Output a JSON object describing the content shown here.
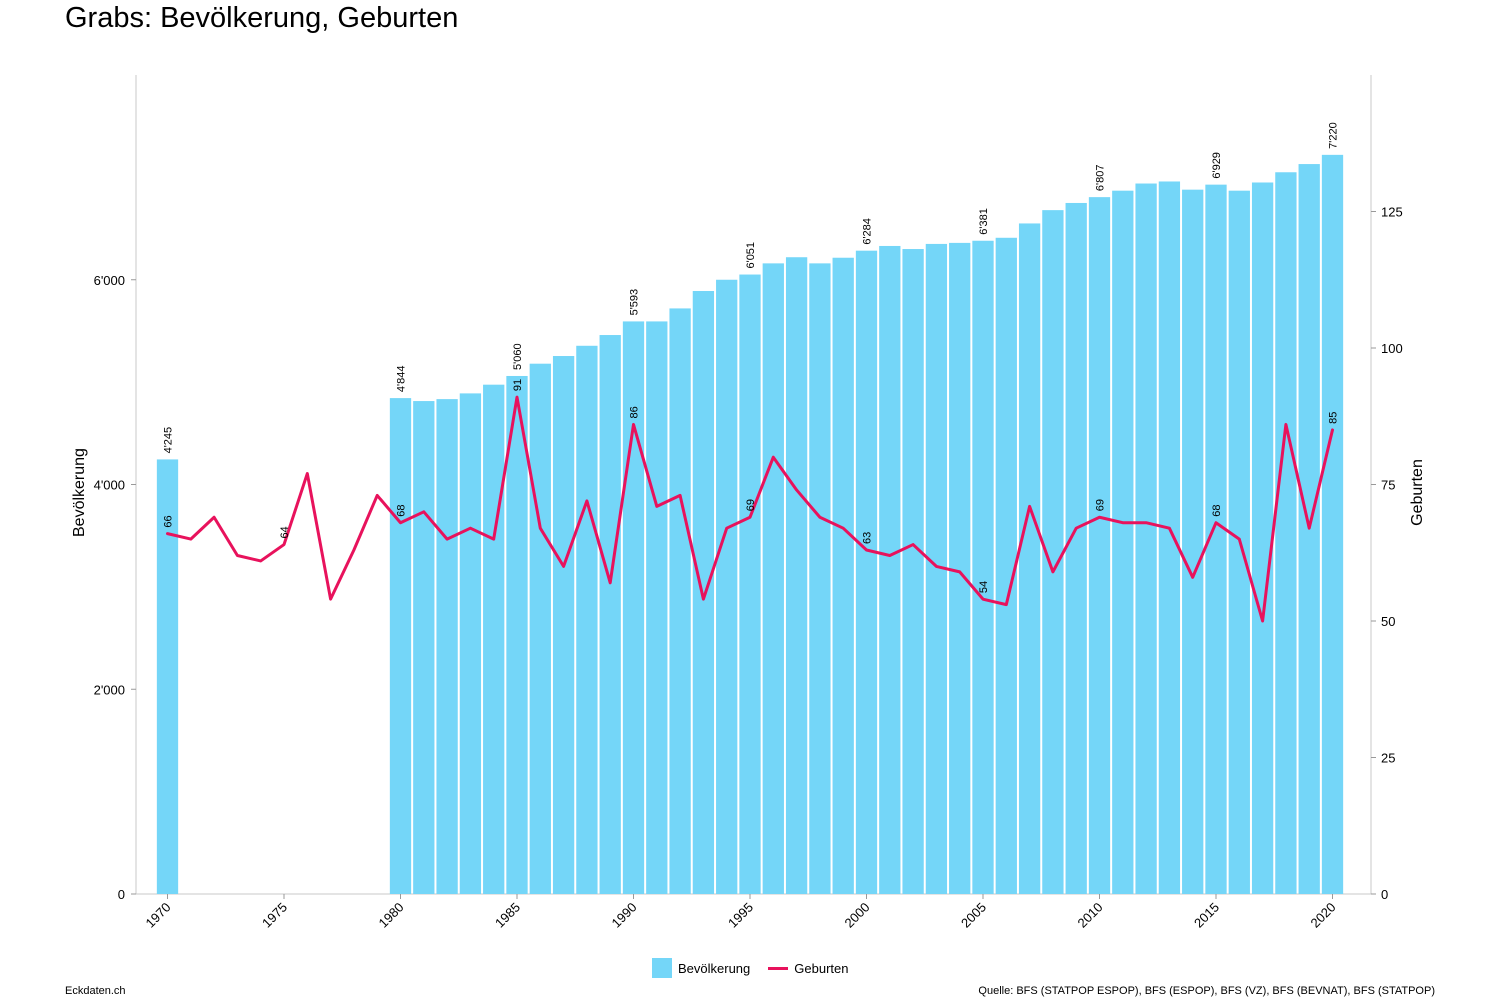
{
  "title": "Grabs: Bevölkerung, Geburten",
  "footer": {
    "left": "Eckdaten.ch",
    "right": "Quelle: BFS (STATPOP ESPOP), BFS (ESPOP), BFS (VZ), BFS (BEVNAT), BFS (STATPOP)"
  },
  "colors": {
    "bars": "#74d6f8",
    "line": "#e8125c",
    "axis": "#c8c8c8"
  },
  "legend": {
    "bar_label": "Bevölkerung",
    "line_label": "Geburten"
  },
  "chart_data": {
    "type": "bar",
    "x": [
      1970,
      1971,
      1972,
      1973,
      1974,
      1975,
      1976,
      1977,
      1978,
      1979,
      1980,
      1981,
      1982,
      1983,
      1984,
      1985,
      1986,
      1987,
      1988,
      1989,
      1990,
      1991,
      1992,
      1993,
      1994,
      1995,
      1996,
      1997,
      1998,
      1999,
      2000,
      2001,
      2002,
      2003,
      2004,
      2005,
      2006,
      2007,
      2008,
      2009,
      2010,
      2011,
      2012,
      2013,
      2014,
      2015,
      2016,
      2017,
      2018,
      2019,
      2020
    ],
    "x_ticks": [
      1970,
      1975,
      1980,
      1985,
      1990,
      1995,
      2000,
      2005,
      2010,
      2015,
      2020
    ],
    "series": [
      {
        "name": "Bevölkerung",
        "type": "bar",
        "axis": "left",
        "values": [
          4245,
          null,
          null,
          null,
          null,
          null,
          null,
          null,
          null,
          null,
          4844,
          4815,
          4834,
          4890,
          4975,
          5060,
          5180,
          5255,
          5355,
          5460,
          5593,
          5593,
          5720,
          5890,
          6000,
          6051,
          6160,
          6220,
          6160,
          6215,
          6284,
          6330,
          6300,
          6350,
          6360,
          6381,
          6410,
          6550,
          6680,
          6750,
          6807,
          6870,
          6940,
          6960,
          6880,
          6929,
          6870,
          6950,
          7050,
          7130,
          7220
        ],
        "labels": {
          "1970": "4'245",
          "1980": "4'844",
          "1985": "5'060",
          "1990": "5'593",
          "1995": "6'051",
          "2000": "6'284",
          "2005": "6'381",
          "2010": "6'807",
          "2015": "6'929",
          "2020": "7'220"
        }
      },
      {
        "name": "Geburten",
        "type": "line",
        "axis": "right",
        "values": [
          66,
          65,
          69,
          62,
          61,
          64,
          77,
          54,
          63,
          73,
          68,
          70,
          65,
          67,
          65,
          91,
          67,
          60,
          72,
          57,
          86,
          71,
          73,
          54,
          67,
          69,
          80,
          74,
          69,
          67,
          63,
          62,
          64,
          60,
          59,
          54,
          53,
          71,
          59,
          67,
          69,
          68,
          68,
          67,
          58,
          68,
          65,
          50,
          86,
          67,
          85
        ],
        "labels": {
          "1970": "66",
          "1975": "64",
          "1980": "68",
          "1985": "91",
          "1990": "86",
          "1995": "69",
          "2000": "63",
          "2005": "54",
          "2010": "69",
          "2015": "68",
          "2020": "85"
        }
      }
    ],
    "ylabel": "Bevölkerung",
    "ylim": [
      0,
      8000
    ],
    "y_ticks": [
      0,
      2000,
      4000,
      6000
    ],
    "y_tick_labels": [
      "0",
      "2'000",
      "4'000",
      "6'000"
    ],
    "y2label": "Geburten",
    "y2lim": [
      0,
      150
    ],
    "y2_ticks": [
      0,
      25,
      50,
      75,
      100,
      125
    ],
    "legend_position": "bottom-center"
  }
}
